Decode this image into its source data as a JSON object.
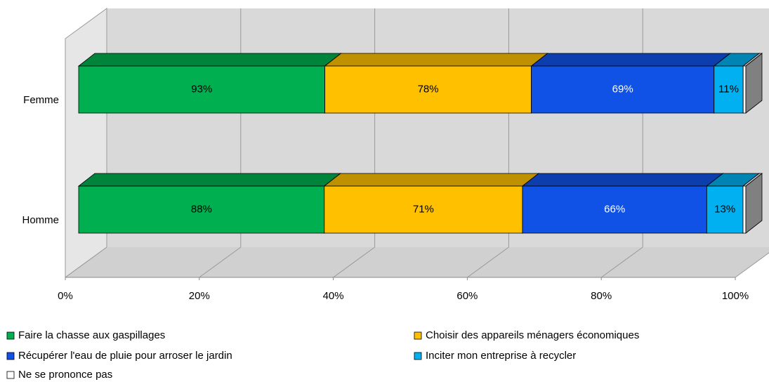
{
  "chart_data": {
    "type": "bar",
    "stacked": "percent",
    "orientation": "horizontal",
    "categories": [
      "Femme",
      "Homme"
    ],
    "series": [
      {
        "name": "Faire la chasse aux gaspillages",
        "color": "#00b050",
        "values": [
          93,
          88
        ],
        "value_labels": [
          "93%",
          "88%"
        ]
      },
      {
        "name": "Choisir des appareils ménagers économiques",
        "color": "#ffc000",
        "values": [
          78,
          71
        ],
        "value_labels": [
          "78%",
          "71%"
        ]
      },
      {
        "name": "Récupérer l'eau de pluie pour arroser le jardin",
        "color": "#1052e6",
        "values": [
          69,
          66
        ],
        "value_labels": [
          "69%",
          "66%"
        ]
      },
      {
        "name": "Inciter mon entreprise à recycler",
        "color": "#00b0f0",
        "values": [
          11,
          13
        ],
        "value_labels": [
          "11%",
          "13%"
        ]
      },
      {
        "name": "Ne se prononce pas",
        "color": "#ffffff",
        "values": [
          1,
          1
        ]
      }
    ],
    "xlim": [
      0,
      100
    ],
    "xticks": [
      {
        "value": 0,
        "label": "0%"
      },
      {
        "value": 20,
        "label": "20%"
      },
      {
        "value": 40,
        "label": "40%"
      },
      {
        "value": 60,
        "label": "60%"
      },
      {
        "value": 80,
        "label": "80%"
      },
      {
        "value": 100,
        "label": "100%"
      }
    ],
    "grid": true
  }
}
